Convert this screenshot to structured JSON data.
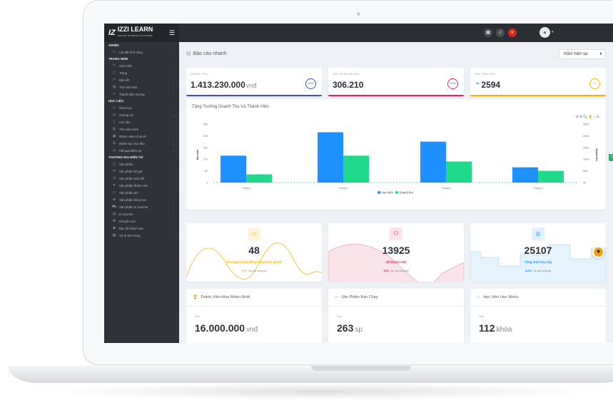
{
  "app": {
    "logo_mark": "IZ",
    "logo_text": "IZZI LEARN",
    "logo_sub": "ONLINE TRAINING PLATFORM"
  },
  "sidebar": {
    "sections": [
      {
        "title": "ADMIN",
        "items": [
          {
            "label": "Cài đặt tính năng",
            "icon": "monitor-icon"
          }
        ]
      },
      {
        "title": "TRANG WEB",
        "items": [
          {
            "label": "Giao diện",
            "icon": "brush-icon"
          },
          {
            "label": "Trang",
            "icon": "window-icon"
          },
          {
            "label": "Bài viết",
            "icon": "edit-icon"
          },
          {
            "label": "Thư viện ảnh",
            "icon": "image-icon"
          },
          {
            "label": "Thanh điều hướng",
            "icon": "menu-icon"
          }
        ]
      },
      {
        "title": "HỌC LIỆU",
        "items": [
          {
            "label": "Khóa học",
            "icon": "graduation-icon"
          },
          {
            "label": "Chứng chỉ",
            "icon": "medal-icon"
          },
          {
            "label": "Học liệu",
            "icon": "file-icon"
          },
          {
            "label": "Thư viện sách",
            "icon": "book-icon"
          },
          {
            "label": "Nhóm video chia sẻ",
            "icon": "video-icon"
          },
          {
            "label": "Danh mục học liệu",
            "icon": "list-icon"
          },
          {
            "label": "Kết quả kiểm tra",
            "icon": "clock-icon"
          }
        ]
      },
      {
        "title": "THƯƠNG MẠI ĐIỆN TỬ",
        "items": [
          {
            "label": "Sản phẩm",
            "icon": "box-icon"
          },
          {
            "label": "Sản phẩm ký gửi",
            "icon": "handshake-icon"
          },
          {
            "label": "Sản phẩm trao đổi",
            "icon": "exchange-icon"
          },
          {
            "label": "Sản phẩm thành viên",
            "icon": "user-product-icon"
          },
          {
            "label": "Sản phẩm phí",
            "icon": "fee-icon"
          },
          {
            "label": "Sản phẩm khóa học",
            "icon": "course-product-icon"
          },
          {
            "label": "Sản phẩm E.Voucher",
            "icon": "cart-icon"
          },
          {
            "label": "E.Voucher",
            "icon": "voucher-icon"
          },
          {
            "label": "Khuyến mại",
            "icon": "gift-icon"
          },
          {
            "label": "Địa chỉ khách sạn",
            "icon": "location-icon"
          },
          {
            "label": "Xử lý đơn hàng",
            "icon": "order-icon"
          }
        ]
      }
    ]
  },
  "page": {
    "title": "Báo cáo nhanh",
    "period": "Năm hiện tại"
  },
  "kpis": [
    {
      "label": "DOANH THU",
      "value": "1.413.230.000",
      "unit": "vnđ",
      "ring": "100%",
      "color": "#3f51b5"
    },
    {
      "label": "SẢN PHẨM ĐÃ BÁN",
      "value": "306.210",
      "unit": "",
      "ring": "100%",
      "color": "#e91e63"
    },
    {
      "label": "HỌC VIÊN MỚI",
      "value": "2594",
      "unit": "",
      "ring": "+",
      "color": "#f5b400"
    }
  ],
  "chart_data": {
    "type": "bar",
    "title": "Tăng Trưởng Doanh Thu Và Thành Viên",
    "categories": [
      "Tháng 1",
      "Tháng 4",
      "Tháng 8",
      "Tháng 9"
    ],
    "series": [
      {
        "name": "Học viên",
        "values": [
          115,
          215,
          175,
          65
        ],
        "color": "#1e90ff"
      },
      {
        "name": "Doanh thu",
        "values": [
          35,
          115,
          90,
          50
        ],
        "color": "#20d98b"
      }
    ],
    "ylim": [
      0,
      250
    ],
    "yticks_left": [
      "0",
      "50",
      "100",
      "150",
      "200",
      "250"
    ],
    "yticks_right": [
      "0b",
      "50b",
      "100b",
      "150b",
      "200b",
      "250b"
    ],
    "ylabel_left": "Học viên",
    "ylabel_right": "Doanh thu",
    "legend": "bottom"
  },
  "stats": [
    {
      "value": "48",
      "label": "Thời gian hoạt động trung bình (phút)",
      "percent": "57%",
      "sub": "So với cùng kỳ",
      "color": "#f5b400",
      "icon": "laptop-icon"
    },
    {
      "value": "13925",
      "label": "Số khách mới",
      "percent": "53%",
      "sub": "So với cùng kỳ",
      "color": "#e0245e",
      "icon": "users-icon"
    },
    {
      "value": "25107",
      "label": "Tổng lượt truy cập",
      "percent": "115%",
      "sub": "So với cùng kỳ",
      "color": "#1e90ff",
      "icon": "globe-icon"
    }
  ],
  "bottom_cards": [
    {
      "title": "Thành Viên Mua Nhiều Nhất",
      "na": "N/A",
      "value": "16.000.000",
      "unit": "vnđ"
    },
    {
      "title": "Sản Phẩm Bán Chạy",
      "na": "N/A",
      "value": "263",
      "unit": "sp"
    },
    {
      "title": "Học Viên Học Nhiều",
      "na": "N/A",
      "value": "112",
      "unit": "khóa"
    }
  ]
}
